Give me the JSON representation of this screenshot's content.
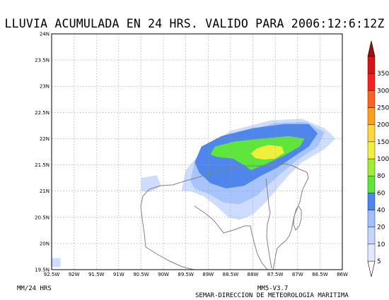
{
  "title": "LLUVIA ACUMULADA EN 24 HRS. VALIDO PARA 2006:12:6:12Z",
  "units_label": "MM/24 HRS",
  "model_label": "MM5-V3.7",
  "credit_label": "SEMAR-DIRECCION DE METEOROLOGIA MARITIMA",
  "map": {
    "lon_range": [
      -92.5,
      -86.0
    ],
    "lat_range": [
      19.5,
      24.0
    ],
    "lon_ticks": [
      {
        "value": -92.5,
        "label": "92.5W"
      },
      {
        "value": -92.0,
        "label": "92W"
      },
      {
        "value": -91.5,
        "label": "91.5W"
      },
      {
        "value": -91.0,
        "label": "91W"
      },
      {
        "value": -90.5,
        "label": "90.5W"
      },
      {
        "value": -90.0,
        "label": "90W"
      },
      {
        "value": -89.5,
        "label": "89.5W"
      },
      {
        "value": -89.0,
        "label": "89W"
      },
      {
        "value": -88.5,
        "label": "88.5W"
      },
      {
        "value": -88.0,
        "label": "88W"
      },
      {
        "value": -87.5,
        "label": "87.5W"
      },
      {
        "value": -87.0,
        "label": "87W"
      },
      {
        "value": -86.5,
        "label": "86.5W"
      },
      {
        "value": -86.0,
        "label": "86W"
      }
    ],
    "lat_ticks": [
      {
        "value": 19.5,
        "label": "19.5N"
      },
      {
        "value": 20.0,
        "label": "20N"
      },
      {
        "value": 20.5,
        "label": "20.5N"
      },
      {
        "value": 21.0,
        "label": "21N"
      },
      {
        "value": 21.5,
        "label": "21.5N"
      },
      {
        "value": 22.0,
        "label": "22N"
      },
      {
        "value": 22.5,
        "label": "22.5N"
      },
      {
        "value": 23.0,
        "label": "23N"
      },
      {
        "value": 23.5,
        "label": "23.5N"
      },
      {
        "value": 24.0,
        "label": "24N"
      }
    ],
    "rain_regions": [
      {
        "level": 5,
        "color": "#cddcff",
        "points": [
          [
            -89.6,
            21.0
          ],
          [
            -89.5,
            21.4
          ],
          [
            -89.1,
            21.8
          ],
          [
            -88.5,
            22.15
          ],
          [
            -87.6,
            22.35
          ],
          [
            -86.9,
            22.38
          ],
          [
            -86.4,
            22.2
          ],
          [
            -86.15,
            22.0
          ],
          [
            -86.4,
            21.8
          ],
          [
            -86.9,
            21.55
          ],
          [
            -87.2,
            21.3
          ],
          [
            -87.45,
            21.05
          ],
          [
            -87.7,
            20.8
          ],
          [
            -88.0,
            20.55
          ],
          [
            -88.3,
            20.45
          ],
          [
            -88.55,
            20.5
          ],
          [
            -88.8,
            20.7
          ],
          [
            -89.1,
            20.9
          ],
          [
            -89.4,
            21.0
          ]
        ]
      },
      {
        "level": 5,
        "color": "#cddcff",
        "points": [
          [
            -90.5,
            21.25
          ],
          [
            -90.15,
            21.3
          ],
          [
            -90.05,
            21.1
          ],
          [
            -90.3,
            20.98
          ],
          [
            -90.5,
            21.0
          ]
        ]
      },
      {
        "level": 5,
        "color": "#cddcff",
        "points": [
          [
            -92.5,
            19.55
          ],
          [
            -92.3,
            19.55
          ],
          [
            -92.3,
            19.72
          ],
          [
            -92.5,
            19.72
          ]
        ]
      },
      {
        "level": 10,
        "color": "#a8c4ff",
        "points": [
          [
            -89.4,
            21.2
          ],
          [
            -89.3,
            21.55
          ],
          [
            -88.9,
            21.9
          ],
          [
            -88.3,
            22.12
          ],
          [
            -87.5,
            22.3
          ],
          [
            -86.8,
            22.32
          ],
          [
            -86.4,
            22.12
          ],
          [
            -86.55,
            21.85
          ],
          [
            -87.0,
            21.6
          ],
          [
            -87.35,
            21.35
          ],
          [
            -87.65,
            21.12
          ],
          [
            -87.9,
            20.92
          ],
          [
            -88.3,
            20.75
          ],
          [
            -88.65,
            20.78
          ],
          [
            -89.0,
            20.95
          ],
          [
            -89.3,
            21.05
          ]
        ]
      },
      {
        "level": 20,
        "color": "#4f86ec",
        "points": [
          [
            -89.3,
            21.55
          ],
          [
            -89.15,
            21.85
          ],
          [
            -88.7,
            22.05
          ],
          [
            -88.0,
            22.2
          ],
          [
            -87.3,
            22.28
          ],
          [
            -86.75,
            22.28
          ],
          [
            -86.55,
            22.1
          ],
          [
            -86.75,
            21.85
          ],
          [
            -87.15,
            21.62
          ],
          [
            -87.45,
            21.45
          ],
          [
            -87.8,
            21.3
          ],
          [
            -88.2,
            21.1
          ],
          [
            -88.6,
            21.05
          ],
          [
            -88.95,
            21.15
          ],
          [
            -89.2,
            21.35
          ]
        ]
      },
      {
        "level": 40,
        "color": "#5fe63c",
        "points": [
          [
            -88.95,
            21.7
          ],
          [
            -88.85,
            21.85
          ],
          [
            -88.4,
            21.95
          ],
          [
            -87.8,
            22.0
          ],
          [
            -87.2,
            22.05
          ],
          [
            -86.85,
            22.0
          ],
          [
            -86.95,
            21.85
          ],
          [
            -87.3,
            21.68
          ],
          [
            -87.75,
            21.5
          ],
          [
            -88.05,
            21.4
          ],
          [
            -88.2,
            21.5
          ],
          [
            -88.45,
            21.62
          ],
          [
            -88.8,
            21.65
          ]
        ]
      },
      {
        "level": 60,
        "color": "#f0f03c",
        "points": [
          [
            -88.05,
            21.72
          ],
          [
            -87.9,
            21.82
          ],
          [
            -87.65,
            21.88
          ],
          [
            -87.35,
            21.85
          ],
          [
            -87.3,
            21.73
          ],
          [
            -87.5,
            21.62
          ],
          [
            -87.75,
            21.6
          ],
          [
            -87.95,
            21.63
          ]
        ]
      }
    ]
  },
  "colorbar": {
    "levels": [
      {
        "label": "5",
        "color": "#e3e9ff"
      },
      {
        "label": "10",
        "color": "#c5d5ff"
      },
      {
        "label": "20",
        "color": "#a3bfff"
      },
      {
        "label": "40",
        "color": "#4f86ec"
      },
      {
        "label": "60",
        "color": "#5fe63c"
      },
      {
        "label": "80",
        "color": "#a0ea3c"
      },
      {
        "label": "100",
        "color": "#f0f03c"
      },
      {
        "label": "150",
        "color": "#ffd83c"
      },
      {
        "label": "200",
        "color": "#ff9f1e"
      },
      {
        "label": "250",
        "color": "#ff641e"
      },
      {
        "label": "300",
        "color": "#ff1e1e"
      },
      {
        "label": "350",
        "color": "#d81414"
      }
    ],
    "top_color": "#9b0f0f",
    "bottom_color": "#ffffff"
  }
}
